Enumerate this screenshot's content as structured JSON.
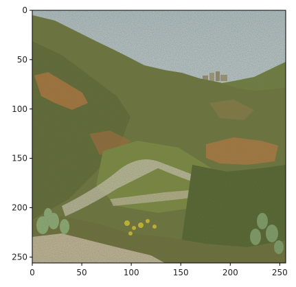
{
  "figure": {
    "type": "image-with-axes",
    "x_ticks": [
      "0",
      "50",
      "100",
      "150",
      "200",
      "250"
    ],
    "y_ticks": [
      "0",
      "50",
      "100",
      "150",
      "200",
      "250"
    ],
    "x_range": [
      0,
      256
    ],
    "y_range": [
      0,
      256
    ],
    "y_inverted": true
  },
  "image": {
    "description_tags": [
      "hillside",
      "scrubland",
      "cactus",
      "ruins-on-ridge",
      "sky"
    ],
    "colors": {
      "sky_top": "#b8c6d6",
      "sky_bottom": "#dfe6ea",
      "hill_dark": "#4f5a2a",
      "hill_mid": "#6f7a3c",
      "hill_light": "#8d8a4c",
      "rock_orange": "#b8733a",
      "rock_tan": "#c9a77a",
      "path_pale": "#d8cfc0",
      "cactus": "#8fb07a",
      "flower_yellow": "#d9c32a",
      "foreground_dark": "#3d3a22"
    }
  }
}
